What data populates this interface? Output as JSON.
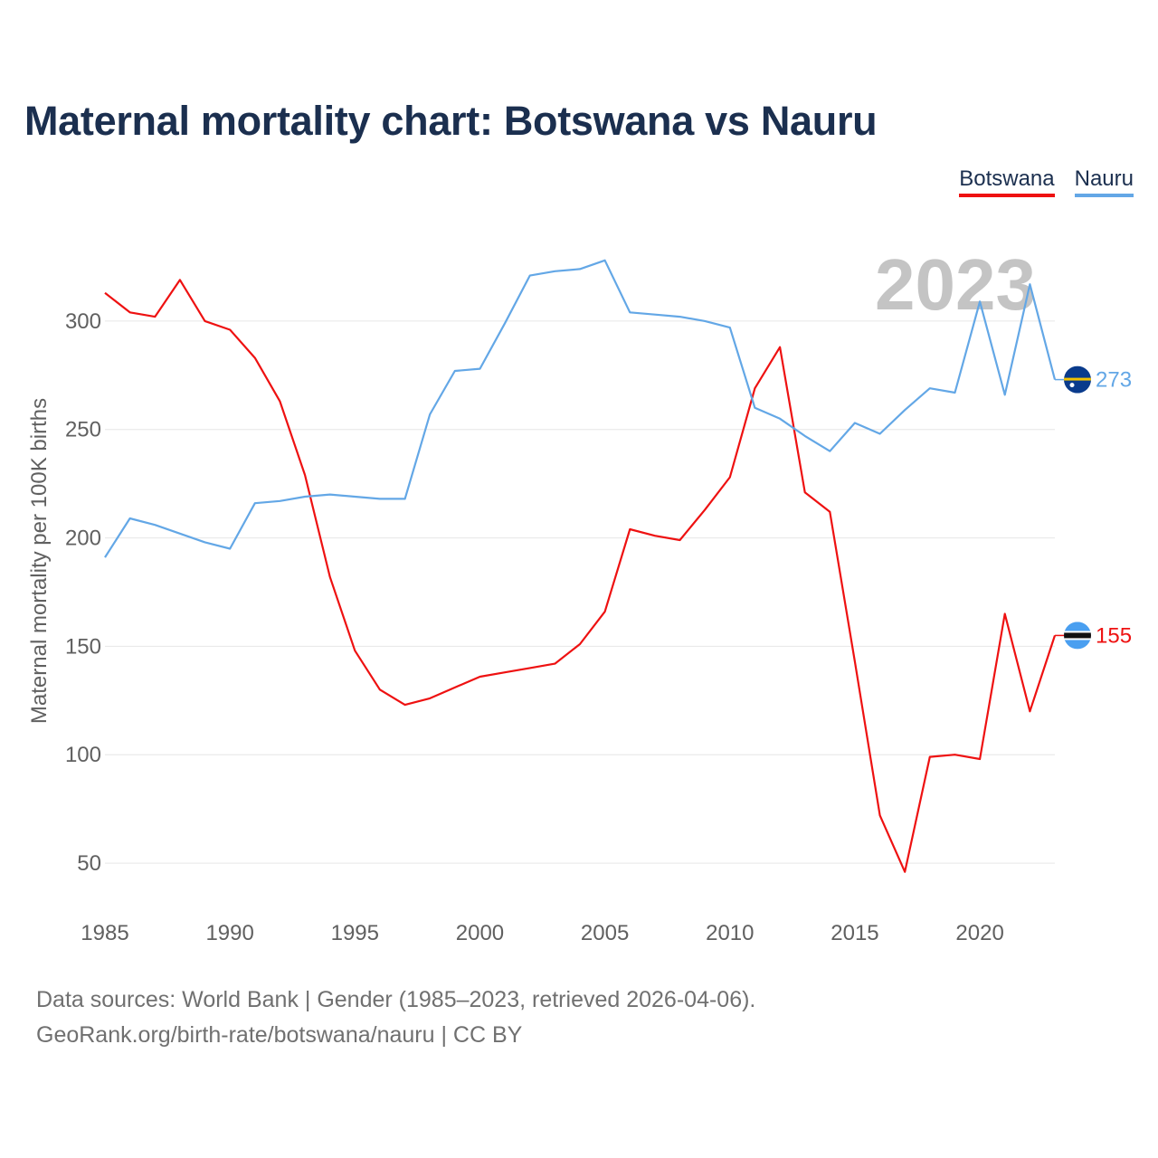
{
  "title": "Maternal mortality chart: Botswana vs Nauru",
  "legend": [
    {
      "label": "Botswana",
      "color": "#ee1111"
    },
    {
      "label": "Nauru",
      "color": "#63a7e6"
    }
  ],
  "year_label": "2023",
  "footer": {
    "line1": "Data sources: World Bank | Gender (1985–2023, retrieved 2026-04-06).",
    "line2": "GeoRank.org/birth-rate/botswana/nauru | CC BY"
  },
  "chart_data": {
    "type": "line",
    "title": "Maternal mortality chart: Botswana vs Nauru",
    "xlabel": "",
    "ylabel": "Maternal mortality per 100K births",
    "xlim": [
      1985,
      2023
    ],
    "ylim": [
      30,
      330
    ],
    "x_ticks": [
      1985,
      1990,
      1995,
      2000,
      2005,
      2010,
      2015,
      2020
    ],
    "y_ticks": [
      50,
      100,
      150,
      200,
      250,
      300
    ],
    "grid": true,
    "legend_position": "top-right",
    "x": [
      1985,
      1986,
      1987,
      1988,
      1989,
      1990,
      1991,
      1992,
      1993,
      1994,
      1995,
      1996,
      1997,
      1998,
      1999,
      2000,
      2001,
      2002,
      2003,
      2004,
      2005,
      2006,
      2007,
      2008,
      2009,
      2010,
      2011,
      2012,
      2013,
      2014,
      2015,
      2016,
      2017,
      2018,
      2019,
      2020,
      2021,
      2022,
      2023
    ],
    "series": [
      {
        "name": "Botswana",
        "color": "#ee1111",
        "end_label": "155",
        "flag": "botswana-flag-icon",
        "values": [
          313,
          304,
          302,
          319,
          300,
          296,
          283,
          263,
          229,
          182,
          148,
          130,
          123,
          126,
          131,
          136,
          138,
          140,
          142,
          151,
          166,
          204,
          201,
          199,
          213,
          228,
          269,
          288,
          221,
          212,
          143,
          72,
          46,
          99,
          100,
          98,
          165,
          120,
          155
        ]
      },
      {
        "name": "Nauru",
        "color": "#63a7e6",
        "end_label": "273",
        "flag": "nauru-flag-icon",
        "values": [
          191,
          209,
          206,
          202,
          198,
          195,
          216,
          217,
          219,
          220,
          219,
          218,
          218,
          257,
          277,
          278,
          299,
          321,
          323,
          324,
          328,
          304,
          303,
          302,
          300,
          297,
          260,
          255,
          247,
          240,
          253,
          248,
          259,
          269,
          267,
          309,
          266,
          317,
          273
        ]
      }
    ]
  }
}
